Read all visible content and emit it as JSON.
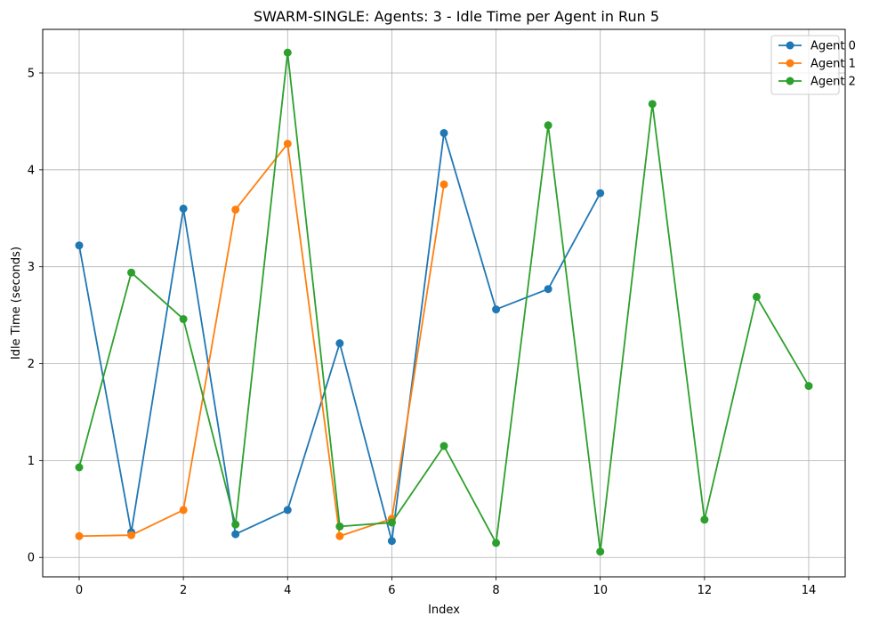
{
  "chart_data": {
    "type": "line",
    "title": "SWARM-SINGLE: Agents: 3 - Idle Time per Agent in Run 5",
    "xlabel": "Index",
    "ylabel": "Idle Time (seconds)",
    "xlim": [
      -0.7,
      14.7
    ],
    "ylim": [
      -0.2,
      5.45
    ],
    "xticks": [
      0,
      2,
      4,
      6,
      8,
      10,
      12,
      14
    ],
    "yticks": [
      0,
      1,
      2,
      3,
      4,
      5
    ],
    "grid": true,
    "legend_position": "top-right",
    "series": [
      {
        "name": "Agent 0",
        "color": "#1f77b4",
        "x": [
          0,
          1,
          2,
          3,
          4,
          5,
          6,
          7,
          8,
          9,
          10
        ],
        "y": [
          3.22,
          0.26,
          3.6,
          0.24,
          0.49,
          2.21,
          0.17,
          4.38,
          2.56,
          2.77,
          3.76
        ]
      },
      {
        "name": "Agent 1",
        "color": "#ff7f0e",
        "x": [
          0,
          1,
          2,
          3,
          4,
          5,
          6,
          7
        ],
        "y": [
          0.22,
          0.23,
          0.49,
          3.59,
          4.27,
          0.22,
          0.4,
          3.85
        ]
      },
      {
        "name": "Agent 2",
        "color": "#2ca02c",
        "x": [
          0,
          1,
          2,
          3,
          4,
          5,
          6,
          7,
          8,
          9,
          10,
          11,
          12,
          13,
          14
        ],
        "y": [
          0.93,
          2.94,
          2.46,
          0.34,
          5.21,
          0.32,
          0.36,
          1.15,
          0.15,
          4.46,
          0.06,
          4.68,
          0.39,
          2.69,
          1.77
        ]
      }
    ]
  }
}
